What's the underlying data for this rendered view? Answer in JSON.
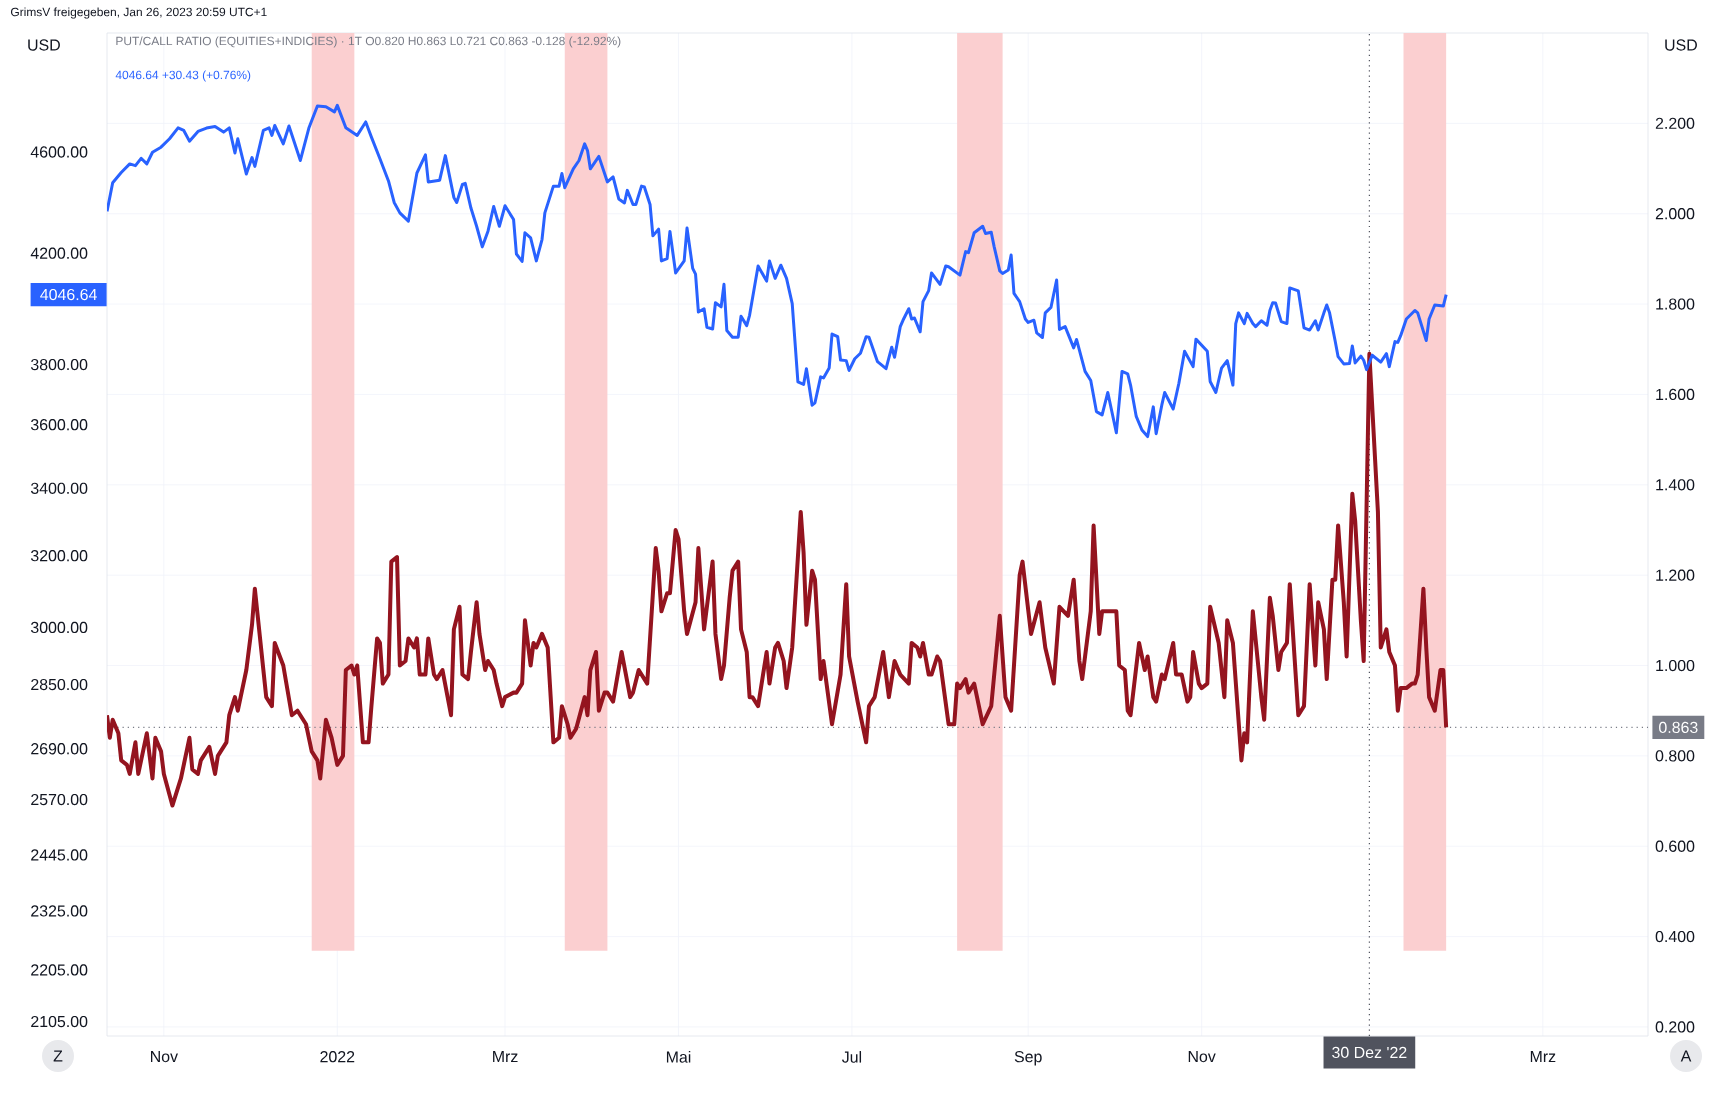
{
  "chart_data": {
    "type": "line",
    "ylabel": "USD",
    "y2label": "USD",
    "annotations": [
      "GrimsV freigegeben, Jan 26, 2023 20:59 UTC+1",
      "PUT/CALL RATIO (EQUITIES+INDICIES) · 1T  O0.820 H0.863 L0.721 C0.863 -0.128 (-12.92%)",
      "4046.64 +30.43 (+0.76%)",
      "Z",
      "A",
      "4046.64"
    ],
    "xlim": [
      "2021-10-12",
      "2023-04-07"
    ],
    "xticks": [
      {
        "value": "2021-11-01",
        "label": "Nov"
      },
      {
        "value": "2022-01-01",
        "label": "2022"
      },
      {
        "value": "2022-03-01",
        "label": "Mrz"
      },
      {
        "value": "2022-05-01",
        "label": "Mai"
      },
      {
        "value": "2022-07-01",
        "label": "Jul"
      },
      {
        "value": "2022-09-01",
        "label": "Sep"
      },
      {
        "value": "2022-11-01",
        "label": "Nov"
      },
      {
        "value": "2023-03-01",
        "label": "Mrz"
      }
    ],
    "log": "y",
    "ylim": [
      2078,
      5120
    ],
    "yticks": [
      {
        "value": 4600,
        "label": "4600.00"
      },
      {
        "value": 4200,
        "label": "4200.00"
      },
      {
        "value": 3800,
        "label": "3800.00"
      },
      {
        "value": 3600,
        "label": "3600.00"
      },
      {
        "value": 3400,
        "label": "3400.00"
      },
      {
        "value": 3200,
        "label": "3200.00"
      },
      {
        "value": 3000,
        "label": "3000.00"
      },
      {
        "value": 2850,
        "label": "2850.00"
      },
      {
        "value": 2690,
        "label": "2690.00"
      },
      {
        "value": 2570,
        "label": "2570.00"
      },
      {
        "value": 2445,
        "label": "2445.00"
      },
      {
        "value": 2325,
        "label": "2325.00"
      },
      {
        "value": 2205,
        "label": "2205.00"
      },
      {
        "value": 2105,
        "label": "2105.00"
      }
    ],
    "y2lim": [
      0.18,
      2.4
    ],
    "y2ticks": [
      {
        "value": 0.2,
        "label": "0.200"
      },
      {
        "value": 0.4,
        "label": "0.400"
      },
      {
        "value": 0.6,
        "label": "0.600"
      },
      {
        "value": 0.8,
        "label": "0.800"
      },
      {
        "value": 1.0,
        "label": "1.000"
      },
      {
        "value": 1.2,
        "label": "1.200"
      },
      {
        "value": 1.4,
        "label": "1.400"
      },
      {
        "value": 1.6,
        "label": "1.600"
      },
      {
        "value": 1.8,
        "label": "1.800"
      },
      {
        "value": 2.0,
        "label": "2.000"
      },
      {
        "value": 2.2,
        "label": "2.200"
      }
    ],
    "grid": true,
    "bands": [
      {
        "axis": "x",
        "from": "2021-12-23",
        "to": "2022-01-07",
        "color": "#fbcfd0"
      },
      {
        "axis": "x",
        "from": "2022-03-22",
        "to": "2022-04-06",
        "color": "#fbcfd0"
      },
      {
        "axis": "x",
        "from": "2022-08-07",
        "to": "2022-08-23",
        "color": "#fbcfd0"
      },
      {
        "axis": "x",
        "from": "2023-01-11",
        "to": "2023-01-26",
        "color": "#fbcfd0"
      }
    ],
    "ref_lines": [
      {
        "axis": "x",
        "value": "2022-12-30",
        "label": "30 Dez '22",
        "color": "#50535e",
        "line_style": "dotted"
      },
      {
        "axis": "y2",
        "value": 0.863,
        "label": "0.863",
        "color": "#787b86",
        "line_style": "dotted"
      }
    ],
    "series": [
      {
        "color": "#2962ff",
        "axis": "y",
        "x": [
          "2021-10-12",
          "2021-10-14",
          "2021-10-17",
          "2021-10-20",
          "2021-10-22",
          "2021-10-24",
          "2021-10-26",
          "2021-10-28",
          "2021-10-31",
          "2021-11-03",
          "2021-11-06",
          "2021-11-08",
          "2021-11-10",
          "2021-11-13",
          "2021-11-16",
          "2021-11-19",
          "2021-11-22",
          "2021-11-24",
          "2021-11-26",
          "2021-11-27",
          "2021-11-30",
          "2021-12-02",
          "2021-12-03",
          "2021-12-06",
          "2021-12-08",
          "2021-12-09",
          "2021-12-10",
          "2021-12-13",
          "2021-12-15",
          "2021-12-19",
          "2021-12-22",
          "2021-12-25",
          "2021-12-28",
          "2021-12-31",
          "2022-01-01",
          "2022-01-04",
          "2022-01-08",
          "2022-01-11",
          "2022-01-13",
          "2022-01-16",
          "2022-01-19",
          "2022-01-21",
          "2022-01-23",
          "2022-01-26",
          "2022-01-29",
          "2022-02-01",
          "2022-02-02",
          "2022-02-06",
          "2022-02-08",
          "2022-02-11",
          "2022-02-12",
          "2022-02-14",
          "2022-02-15",
          "2022-02-17",
          "2022-02-19",
          "2022-02-21",
          "2022-02-23",
          "2022-02-25",
          "2022-02-27",
          "2022-03-01",
          "2022-03-04",
          "2022-03-05",
          "2022-03-07",
          "2022-03-08",
          "2022-03-10",
          "2022-03-12",
          "2022-03-14",
          "2022-03-15",
          "2022-03-18",
          "2022-03-20",
          "2022-03-21",
          "2022-03-22",
          "2022-03-25",
          "2022-03-27",
          "2022-03-29",
          "2022-03-30",
          "2022-03-31",
          "2022-04-03",
          "2022-04-06",
          "2022-04-08",
          "2022-04-10",
          "2022-04-12",
          "2022-04-13",
          "2022-04-15",
          "2022-04-16",
          "2022-04-18",
          "2022-04-19",
          "2022-04-21",
          "2022-04-22",
          "2022-04-24",
          "2022-04-25",
          "2022-04-27",
          "2022-04-28",
          "2022-04-30",
          "2022-05-03",
          "2022-05-04",
          "2022-05-06",
          "2022-05-07",
          "2022-05-08",
          "2022-05-10",
          "2022-05-11",
          "2022-05-13",
          "2022-05-14",
          "2022-05-16",
          "2022-05-17",
          "2022-05-18",
          "2022-05-20",
          "2022-05-22",
          "2022-05-23",
          "2022-05-25",
          "2022-05-26",
          "2022-05-29",
          "2022-06-01",
          "2022-06-02",
          "2022-06-04",
          "2022-06-06",
          "2022-06-08",
          "2022-06-10",
          "2022-06-12",
          "2022-06-14",
          "2022-06-15",
          "2022-06-17",
          "2022-06-18",
          "2022-06-20",
          "2022-06-21",
          "2022-06-23",
          "2022-06-24",
          "2022-06-26",
          "2022-06-27",
          "2022-06-29",
          "2022-06-30",
          "2022-07-02",
          "2022-07-04",
          "2022-07-06",
          "2022-07-07",
          "2022-07-10",
          "2022-07-13",
          "2022-07-15",
          "2022-07-16",
          "2022-07-18",
          "2022-07-19",
          "2022-07-21",
          "2022-07-22",
          "2022-07-23",
          "2022-07-25",
          "2022-07-26",
          "2022-07-28",
          "2022-07-29",
          "2022-08-01",
          "2022-08-03",
          "2022-08-04",
          "2022-08-08",
          "2022-08-10",
          "2022-08-11",
          "2022-08-13",
          "2022-08-16",
          "2022-08-17",
          "2022-08-19",
          "2022-08-20",
          "2022-08-22",
          "2022-08-23",
          "2022-08-25",
          "2022-08-26",
          "2022-08-27",
          "2022-08-29",
          "2022-08-31",
          "2022-09-01",
          "2022-09-03",
          "2022-09-04",
          "2022-09-06",
          "2022-09-07",
          "2022-09-09",
          "2022-09-11",
          "2022-09-12",
          "2022-09-14",
          "2022-09-17",
          "2022-09-18",
          "2022-09-21",
          "2022-09-23",
          "2022-09-25",
          "2022-09-27",
          "2022-09-29",
          "2022-10-02",
          "2022-10-04",
          "2022-10-06",
          "2022-10-07",
          "2022-10-09",
          "2022-10-11",
          "2022-10-13",
          "2022-10-15",
          "2022-10-16",
          "2022-10-18",
          "2022-10-19",
          "2022-10-22",
          "2022-10-24",
          "2022-10-26",
          "2022-10-29",
          "2022-10-30",
          "2022-11-03",
          "2022-11-04",
          "2022-11-06",
          "2022-11-08",
          "2022-11-10",
          "2022-11-12",
          "2022-11-13",
          "2022-11-14",
          "2022-11-16",
          "2022-11-17",
          "2022-11-19",
          "2022-11-20",
          "2022-11-22",
          "2022-11-24",
          "2022-11-25",
          "2022-11-26",
          "2022-11-27",
          "2022-11-29",
          "2022-12-01",
          "2022-12-02",
          "2022-12-05",
          "2022-12-07",
          "2022-12-09",
          "2022-12-11",
          "2022-12-12",
          "2022-12-14",
          "2022-12-15",
          "2022-12-16",
          "2022-12-18",
          "2022-12-19",
          "2022-12-21",
          "2022-12-23",
          "2022-12-24",
          "2022-12-25",
          "2022-12-27",
          "2022-12-28",
          "2022-12-29",
          "2022-12-31",
          "2023-01-03",
          "2023-01-05",
          "2023-01-06",
          "2023-01-08",
          "2023-01-09",
          "2023-01-10",
          "2023-01-12",
          "2023-01-15",
          "2023-01-16",
          "2023-01-19",
          "2023-01-20",
          "2023-01-22",
          "2023-01-25",
          "2023-01-26"
        ],
        "values": [
          4361,
          4475,
          4516,
          4551,
          4544,
          4574,
          4551,
          4599,
          4620,
          4655,
          4701,
          4690,
          4645,
          4686,
          4700,
          4707,
          4683,
          4701,
          4596,
          4655,
          4510,
          4577,
          4541,
          4690,
          4701,
          4669,
          4711,
          4634,
          4709,
          4565,
          4700,
          4794,
          4791,
          4769,
          4797,
          4701,
          4669,
          4726,
          4662,
          4572,
          4482,
          4396,
          4355,
          4323,
          4514,
          4588,
          4478,
          4485,
          4585,
          4416,
          4396,
          4468,
          4472,
          4374,
          4303,
          4224,
          4284,
          4380,
          4303,
          4383,
          4329,
          4197,
          4169,
          4278,
          4258,
          4171,
          4252,
          4355,
          4461,
          4461,
          4512,
          4455,
          4531,
          4565,
          4634,
          4606,
          4531,
          4582,
          4478,
          4498,
          4410,
          4394,
          4444,
          4388,
          4388,
          4461,
          4458,
          4388,
          4266,
          4292,
          4171,
          4180,
          4283,
          4126,
          4171,
          4296,
          4143,
          4122,
          3984,
          3996,
          3930,
          3924,
          4017,
          4002,
          4084,
          3918,
          3895,
          3895,
          3969,
          3936,
          3972,
          4152,
          4096,
          4171,
          4106,
          4155,
          4106,
          4014,
          3741,
          3733,
          3786,
          3664,
          3672,
          3758,
          3755,
          3789,
          3906,
          3897,
          3816,
          3814,
          3780,
          3820,
          3839,
          3897,
          3895,
          3810,
          3786,
          3860,
          3825,
          3932,
          3956,
          3996,
          3959,
          3963,
          3914,
          4021,
          4061,
          4126,
          4084,
          4152,
          4149,
          4118,
          4206,
          4202,
          4278,
          4303,
          4275,
          4280,
          4226,
          4134,
          4124,
          4137,
          4193,
          4051,
          4021,
          3959,
          3947,
          3955,
          3910,
          3894,
          3981,
          4000,
          4100,
          3922,
          3932,
          3858,
          3887,
          3777,
          3746,
          3643,
          3632,
          3706,
          3574,
          3777,
          3769,
          3731,
          3627,
          3583,
          3562,
          3658,
          3571,
          3665,
          3706,
          3651,
          3737,
          3846,
          3793,
          3888,
          3846,
          3743,
          3706,
          3788,
          3814,
          3731,
          3943,
          3981,
          3943,
          3979,
          3943,
          3932,
          3953,
          3937,
          3990,
          4017,
          4016,
          3950,
          3943,
          4071,
          4060,
          3928,
          3920,
          3953,
          3920,
          3981,
          4009,
          3981,
          3880,
          3827,
          3802,
          3804,
          3864,
          3806,
          3829,
          3815,
          3783,
          3832,
          3809,
          3838,
          3793,
          3880,
          3877,
          3900,
          3959,
          3990,
          3981,
          3883,
          3959,
          4009,
          4005,
          4046.64
        ]
      },
      {
        "color": "#94141f",
        "axis": "y2",
        "x": [
          "2021-10-12",
          "2021-10-13",
          "2021-10-14",
          "2021-10-16",
          "2021-10-17",
          "2021-10-19",
          "2021-10-20",
          "2021-10-22",
          "2021-10-23",
          "2021-10-25",
          "2021-10-26",
          "2021-10-28",
          "2021-10-29",
          "2021-10-31",
          "2021-11-01",
          "2021-11-04",
          "2021-11-07",
          "2021-11-10",
          "2021-11-11",
          "2021-11-13",
          "2021-11-14",
          "2021-11-17",
          "2021-11-19",
          "2021-11-20",
          "2021-11-23",
          "2021-11-24",
          "2021-11-26",
          "2021-11-27",
          "2021-11-30",
          "2021-12-02",
          "2021-12-03",
          "2021-12-06",
          "2021-12-07",
          "2021-12-09",
          "2021-12-10",
          "2021-12-13",
          "2021-12-16",
          "2021-12-18",
          "2021-12-21",
          "2021-12-23",
          "2021-12-25",
          "2021-12-26",
          "2021-12-28",
          "2021-12-30",
          "2022-01-01",
          "2022-01-03",
          "2022-01-04",
          "2022-01-06",
          "2022-01-07",
          "2022-01-08",
          "2022-01-10",
          "2022-01-12",
          "2022-01-13",
          "2022-01-15",
          "2022-01-16",
          "2022-01-17",
          "2022-01-19",
          "2022-01-20",
          "2022-01-22",
          "2022-01-23",
          "2022-01-25",
          "2022-01-26",
          "2022-01-28",
          "2022-01-29",
          "2022-01-30",
          "2022-02-01",
          "2022-02-02",
          "2022-02-04",
          "2022-02-05",
          "2022-02-07",
          "2022-02-10",
          "2022-02-11",
          "2022-02-13",
          "2022-02-14",
          "2022-02-16",
          "2022-02-17",
          "2022-02-19",
          "2022-02-20",
          "2022-02-22",
          "2022-02-23",
          "2022-02-25",
          "2022-02-26",
          "2022-02-28",
          "2022-03-01",
          "2022-03-04",
          "2022-03-05",
          "2022-03-07",
          "2022-03-08",
          "2022-03-10",
          "2022-03-11",
          "2022-03-12",
          "2022-03-14",
          "2022-03-16",
          "2022-03-18",
          "2022-03-20",
          "2022-03-21",
          "2022-03-23",
          "2022-03-24",
          "2022-03-26",
          "2022-03-29",
          "2022-03-30",
          "2022-03-31",
          "2022-04-02",
          "2022-04-03",
          "2022-04-05",
          "2022-04-06",
          "2022-04-08",
          "2022-04-11",
          "2022-04-14",
          "2022-04-15",
          "2022-04-17",
          "2022-04-20",
          "2022-04-23",
          "2022-04-24",
          "2022-04-25",
          "2022-04-27",
          "2022-04-28",
          "2022-04-30",
          "2022-05-01",
          "2022-05-03",
          "2022-05-04",
          "2022-05-07",
          "2022-05-08",
          "2022-05-10",
          "2022-05-13",
          "2022-05-14",
          "2022-05-16",
          "2022-05-17",
          "2022-05-19",
          "2022-05-20",
          "2022-05-22",
          "2022-05-23",
          "2022-05-25",
          "2022-05-26",
          "2022-05-27",
          "2022-05-29",
          "2022-06-01",
          "2022-06-02",
          "2022-06-04",
          "2022-06-05",
          "2022-06-07",
          "2022-06-08",
          "2022-06-10",
          "2022-06-13",
          "2022-06-14",
          "2022-06-15",
          "2022-06-17",
          "2022-06-18",
          "2022-06-20",
          "2022-06-21",
          "2022-06-24",
          "2022-06-27",
          "2022-06-29",
          "2022-06-30",
          "2022-07-03",
          "2022-07-06",
          "2022-07-07",
          "2022-07-09",
          "2022-07-12",
          "2022-07-14",
          "2022-07-16",
          "2022-07-18",
          "2022-07-21",
          "2022-07-22",
          "2022-07-24",
          "2022-07-25",
          "2022-07-26",
          "2022-07-28",
          "2022-07-29",
          "2022-07-31",
          "2022-08-01",
          "2022-08-04",
          "2022-08-06",
          "2022-08-07",
          "2022-08-08",
          "2022-08-10",
          "2022-08-11",
          "2022-08-13",
          "2022-08-14",
          "2022-08-16",
          "2022-08-19",
          "2022-08-22",
          "2022-08-24",
          "2022-08-26",
          "2022-08-29",
          "2022-08-30",
          "2022-09-02",
          "2022-09-05",
          "2022-09-07",
          "2022-09-10",
          "2022-09-12",
          "2022-09-15",
          "2022-09-17",
          "2022-09-19",
          "2022-09-20",
          "2022-09-23",
          "2022-09-24",
          "2022-09-26",
          "2022-09-27",
          "2022-09-29",
          "2022-10-02",
          "2022-10-03",
          "2022-10-05",
          "2022-10-06",
          "2022-10-07",
          "2022-10-10",
          "2022-10-12",
          "2022-10-13",
          "2022-10-15",
          "2022-10-16",
          "2022-10-18",
          "2022-10-19",
          "2022-10-22",
          "2022-10-23",
          "2022-10-25",
          "2022-10-27",
          "2022-10-28",
          "2022-10-29",
          "2022-10-31",
          "2022-11-01",
          "2022-11-03",
          "2022-11-04",
          "2022-11-07",
          "2022-11-09",
          "2022-11-10",
          "2022-11-12",
          "2022-11-15",
          "2022-11-16",
          "2022-11-17",
          "2022-11-19",
          "2022-11-22",
          "2022-11-23",
          "2022-11-25",
          "2022-11-26",
          "2022-11-28",
          "2022-11-29",
          "2022-12-01",
          "2022-12-02",
          "2022-12-05",
          "2022-12-07",
          "2022-12-09",
          "2022-12-11",
          "2022-12-12",
          "2022-12-14",
          "2022-12-15",
          "2022-12-17",
          "2022-12-18",
          "2022-12-19",
          "2022-12-21",
          "2022-12-22",
          "2022-12-24",
          "2022-12-25",
          "2022-12-27",
          "2022-12-28",
          "2022-12-30",
          "2023-01-02",
          "2023-01-03",
          "2023-01-05",
          "2023-01-06",
          "2023-01-08",
          "2023-01-09",
          "2023-01-10",
          "2023-01-12",
          "2023-01-14",
          "2023-01-15",
          "2023-01-16",
          "2023-01-18",
          "2023-01-19",
          "2023-01-20",
          "2023-01-22",
          "2023-01-24",
          "2023-01-25",
          "2023-01-26"
        ],
        "values": [
          0.89,
          0.84,
          0.88,
          0.85,
          0.79,
          0.78,
          0.76,
          0.83,
          0.76,
          0.82,
          0.85,
          0.75,
          0.84,
          0.81,
          0.76,
          0.69,
          0.75,
          0.84,
          0.77,
          0.76,
          0.79,
          0.82,
          0.76,
          0.8,
          0.83,
          0.89,
          0.93,
          0.9,
          0.99,
          1.09,
          1.17,
          0.99,
          0.93,
          0.91,
          1.05,
          1.0,
          0.89,
          0.9,
          0.87,
          0.81,
          0.79,
          0.75,
          0.88,
          0.84,
          0.78,
          0.8,
          0.99,
          1.0,
          0.98,
          1.0,
          0.83,
          0.83,
          0.91,
          1.06,
          1.05,
          0.96,
          0.98,
          1.23,
          1.24,
          1.0,
          1.01,
          1.06,
          1.04,
          1.06,
          0.98,
          0.98,
          1.06,
          0.98,
          0.97,
          0.99,
          0.89,
          1.08,
          1.13,
          0.98,
          0.97,
          1.03,
          1.14,
          1.07,
          0.99,
          1.01,
          0.99,
          0.96,
          0.91,
          0.93,
          0.94,
          0.94,
          0.96,
          1.1,
          1.0,
          1.05,
          1.04,
          1.07,
          1.04,
          0.83,
          0.84,
          0.91,
          0.87,
          0.84,
          0.86,
          0.93,
          0.89,
          0.99,
          1.03,
          0.9,
          0.94,
          0.94,
          0.92,
          1.03,
          0.93,
          0.94,
          0.99,
          0.96,
          1.26,
          1.21,
          1.12,
          1.16,
          1.16,
          1.3,
          1.28,
          1.12,
          1.07,
          1.14,
          1.26,
          1.08,
          1.23,
          1.07,
          0.97,
          1.0,
          1.15,
          1.21,
          1.23,
          1.08,
          1.03,
          0.93,
          0.93,
          0.91,
          1.03,
          0.96,
          1.04,
          1.05,
          1.01,
          0.95,
          1.04,
          1.34,
          1.25,
          1.09,
          1.21,
          1.19,
          0.97,
          1.01,
          0.87,
          0.98,
          1.18,
          1.02,
          0.92,
          0.83,
          0.91,
          0.93,
          1.03,
          0.93,
          1.01,
          0.98,
          0.96,
          1.05,
          1.04,
          1.02,
          1.05,
          0.98,
          0.98,
          1.02,
          1.01,
          0.87,
          0.87,
          0.96,
          0.95,
          0.97,
          0.94,
          0.96,
          0.93,
          0.87,
          0.91,
          1.11,
          0.93,
          0.9,
          1.2,
          1.23,
          1.07,
          1.14,
          1.04,
          0.96,
          1.13,
          1.11,
          1.19,
          1.01,
          0.97,
          1.12,
          1.31,
          1.07,
          1.12,
          1.12,
          1.12,
          1.0,
          0.99,
          0.9,
          0.89,
          1.05,
          0.99,
          1.02,
          0.93,
          0.92,
          0.98,
          0.97,
          1.05,
          0.98,
          0.98,
          0.92,
          0.93,
          1.03,
          0.96,
          0.95,
          0.96,
          1.13,
          1.05,
          0.93,
          1.1,
          1.05,
          0.79,
          0.85,
          0.83,
          1.12,
          0.93,
          0.88,
          1.15,
          1.11,
          0.99,
          1.03,
          1.05,
          1.18,
          0.89,
          0.91,
          1.18,
          1.0,
          1.14,
          1.08,
          0.97,
          1.19,
          1.19,
          1.31,
          1.14,
          1.02,
          1.38,
          1.32,
          1.1,
          1.01,
          1.69,
          1.34,
          1.04,
          1.08,
          1.03,
          1.0,
          0.9,
          0.95,
          0.95,
          0.96,
          0.96,
          0.98,
          1.17,
          1.04,
          0.93,
          0.9,
          0.99,
          0.99,
          0.863
        ]
      }
    ]
  }
}
